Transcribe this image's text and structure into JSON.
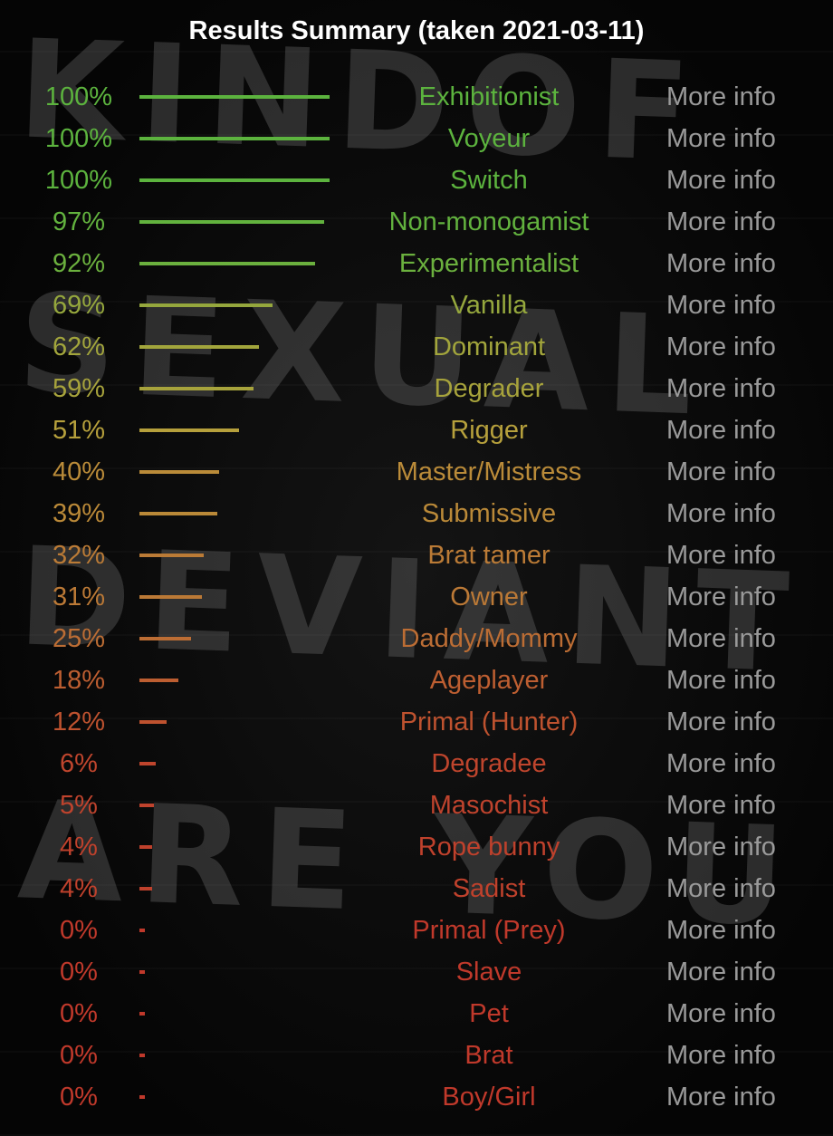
{
  "title": "Results Summary (taken 2021-03-11)",
  "more_info_label": "More info",
  "watermark_lines": [
    "KINDOF",
    "SEXUAL",
    "DEVIANT",
    "ARE YOU"
  ],
  "colors": {
    "high": "#5cb33e",
    "low": "#c0392b",
    "more_info": "#9a9a9a",
    "title": "#ffffff"
  },
  "results": [
    {
      "percent": 100,
      "label": "100%",
      "name": "Exhibitionist"
    },
    {
      "percent": 100,
      "label": "100%",
      "name": "Voyeur"
    },
    {
      "percent": 100,
      "label": "100%",
      "name": "Switch"
    },
    {
      "percent": 97,
      "label": "97%",
      "name": "Non-monogamist"
    },
    {
      "percent": 92,
      "label": "92%",
      "name": "Experimentalist"
    },
    {
      "percent": 69,
      "label": "69%",
      "name": "Vanilla"
    },
    {
      "percent": 62,
      "label": "62%",
      "name": "Dominant"
    },
    {
      "percent": 59,
      "label": "59%",
      "name": "Degrader"
    },
    {
      "percent": 51,
      "label": "51%",
      "name": "Rigger"
    },
    {
      "percent": 40,
      "label": "40%",
      "name": "Master/Mistress"
    },
    {
      "percent": 39,
      "label": "39%",
      "name": "Submissive"
    },
    {
      "percent": 32,
      "label": "32%",
      "name": "Brat tamer"
    },
    {
      "percent": 31,
      "label": "31%",
      "name": "Owner"
    },
    {
      "percent": 25,
      "label": "25%",
      "name": "Daddy/Mommy"
    },
    {
      "percent": 18,
      "label": "18%",
      "name": "Ageplayer"
    },
    {
      "percent": 12,
      "label": "12%",
      "name": "Primal (Hunter)"
    },
    {
      "percent": 6,
      "label": "6%",
      "name": "Degradee"
    },
    {
      "percent": 5,
      "label": "5%",
      "name": "Masochist"
    },
    {
      "percent": 4,
      "label": "4%",
      "name": "Rope bunny"
    },
    {
      "percent": 4,
      "label": "4%",
      "name": "Sadist"
    },
    {
      "percent": 0,
      "label": "0%",
      "name": "Primal (Prey)"
    },
    {
      "percent": 0,
      "label": "0%",
      "name": "Slave"
    },
    {
      "percent": 0,
      "label": "0%",
      "name": "Pet"
    },
    {
      "percent": 0,
      "label": "0%",
      "name": "Brat"
    },
    {
      "percent": 0,
      "label": "0%",
      "name": "Boy/Girl"
    }
  ]
}
